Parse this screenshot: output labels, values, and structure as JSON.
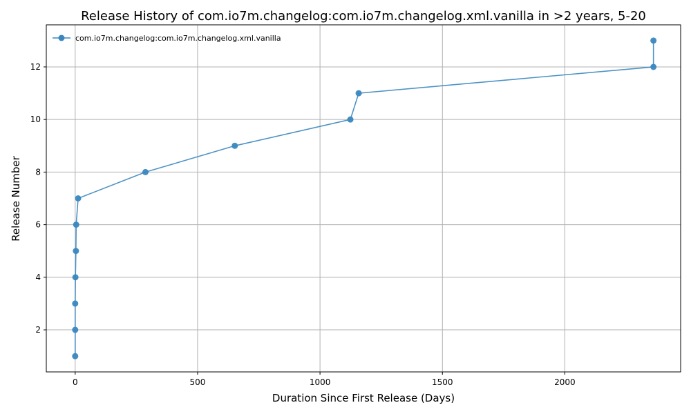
{
  "chart_data": {
    "type": "line",
    "title": "Release History of com.io7m.changelog:com.io7m.changelog.xml.vanilla in >2 years, 5-20",
    "xlabel": "Duration Since First Release (Days)",
    "ylabel": "Release Number",
    "xlim": [
      -118,
      2473
    ],
    "ylim": [
      0.4,
      13.6
    ],
    "xticks": [
      0,
      500,
      1000,
      1500,
      2000
    ],
    "yticks": [
      2,
      4,
      6,
      8,
      10,
      12
    ],
    "grid": true,
    "legend_position": "top-left",
    "colors": {
      "series": "#3a87bf"
    },
    "series": [
      {
        "name": "com.io7m.changelog:com.io7m.changelog.xml.vanilla",
        "x": [
          0,
          0,
          0,
          1,
          3,
          4,
          12,
          287,
          652,
          1124,
          1158,
          2362,
          2362
        ],
        "y": [
          1,
          2,
          3,
          4,
          5,
          6,
          7,
          8,
          9,
          10,
          11,
          12,
          13
        ]
      }
    ]
  }
}
